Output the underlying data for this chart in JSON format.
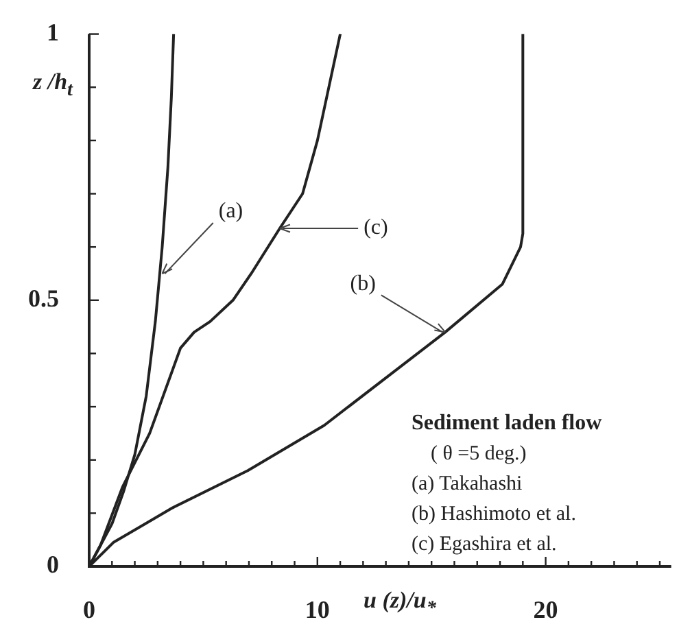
{
  "chart_data": {
    "type": "line",
    "xlabel": "u (z)/u$_{*}$",
    "ylabel": "z /h$_{t}$",
    "xlim": [
      0,
      25.5
    ],
    "ylim": [
      0,
      1
    ],
    "xticks": [
      0,
      {
        "value": 1,
        "label": null
      },
      {
        "value": 2,
        "label": null
      },
      {
        "value": 3,
        "label": null
      },
      {
        "value": 4,
        "label": null
      },
      {
        "value": 5,
        "label": null
      },
      {
        "value": 6,
        "label": null
      },
      {
        "value": 7,
        "label": null
      },
      {
        "value": 8,
        "label": null
      },
      {
        "value": 9,
        "label": null
      },
      10,
      {
        "value": 11,
        "label": null
      },
      {
        "value": 12,
        "label": null
      },
      {
        "value": 13,
        "label": null
      },
      {
        "value": 14,
        "label": null
      },
      {
        "value": 15,
        "label": null
      },
      {
        "value": 16,
        "label": null
      },
      {
        "value": 17,
        "label": null
      },
      {
        "value": 18,
        "label": null
      },
      {
        "value": 19,
        "label": null
      },
      20,
      {
        "value": 21,
        "label": null
      },
      {
        "value": 22,
        "label": null
      },
      {
        "value": 23,
        "label": null
      },
      {
        "value": 24,
        "label": null
      },
      {
        "value": 25,
        "label": null
      }
    ],
    "yticks": [
      0,
      {
        "value": 0.1,
        "label": null
      },
      {
        "value": 0.2,
        "label": null
      },
      {
        "value": 0.3,
        "label": null
      },
      {
        "value": 0.4,
        "label": null
      },
      0.5,
      {
        "value": 0.6,
        "label": null
      },
      {
        "value": 0.7,
        "label": null
      },
      {
        "value": 0.8,
        "label": null
      },
      {
        "value": 0.9,
        "label": null
      },
      1
    ],
    "series": [
      {
        "color": "#222222",
        "x": [
          0,
          0.5,
          1,
          1.5,
          2,
          2.5,
          2.9,
          3.2,
          3.45,
          3.6,
          3.7
        ],
        "values": [
          0,
          0.04,
          0.08,
          0.14,
          0.21,
          0.32,
          0.46,
          0.6,
          0.75,
          0.88,
          1
        ]
      },
      {
        "color": "#222222",
        "x": [
          0,
          1.06,
          3.65,
          6.95,
          10.3,
          15.6,
          18.1,
          18.9,
          19,
          19
        ],
        "values": [
          0,
          0.045,
          0.11,
          0.18,
          0.265,
          0.44,
          0.53,
          0.6,
          0.625,
          1
        ]
      },
      {
        "color": "#222222",
        "x": [
          0,
          0.5,
          1.47,
          2.65,
          4,
          4.6,
          5.3,
          6.3,
          7.1,
          8.35,
          9.35,
          10,
          11
        ],
        "values": [
          0,
          0.04,
          0.15,
          0.25,
          0.41,
          0.44,
          0.46,
          0.5,
          0.55,
          0.635,
          0.7,
          0.8,
          1
        ]
      }
    ],
    "annotations": [
      {
        "text": "(a)",
        "x": 3.2,
        "y": 0.55
      },
      {
        "text": "(b)",
        "x": 15.6,
        "y": 0.44
      },
      {
        "text": "(c)",
        "x": 8.35,
        "y": 0.635
      },
      "Sediment laden flow",
      "( θ =5 deg.)",
      "(a) Takahashi",
      "(b) Hashimoto et al.",
      "(c) Egashira et al."
    ],
    "grid": false,
    "legend": false,
    "marker": "none",
    "line_style": "solid"
  }
}
